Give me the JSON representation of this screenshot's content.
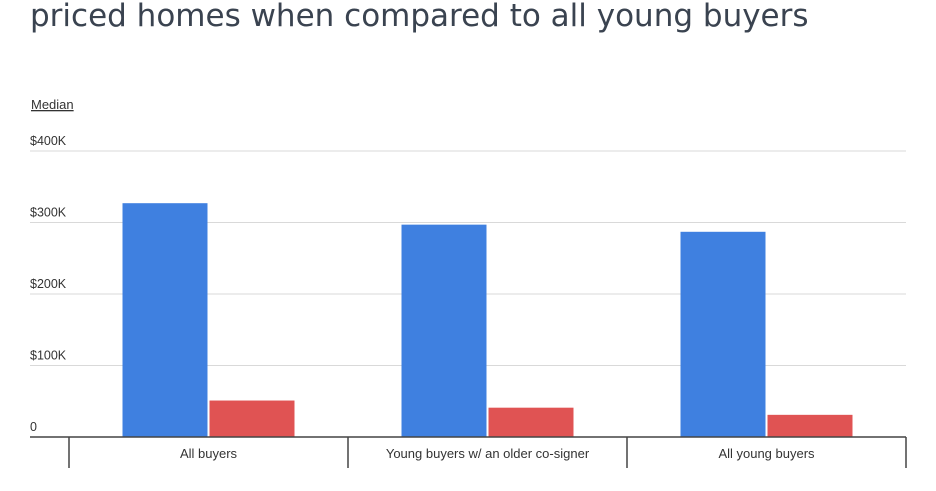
{
  "chart_data": {
    "type": "bar",
    "title": "priced homes when compared to all young buyers",
    "ylabel": "Median",
    "ylim": [
      0,
      400000
    ],
    "ytick_values": [
      0,
      100000,
      200000,
      300000,
      400000
    ],
    "ytick_labels": [
      "0",
      "$100K",
      "$200K",
      "$300K",
      "$400K"
    ],
    "categories": [
      "All buyers",
      "Young buyers w/ an older co-signer",
      "All young buyers"
    ],
    "series": [
      {
        "color": "#3f80e0",
        "values": [
          327000,
          297000,
          287000
        ]
      },
      {
        "color": "#e05353",
        "values": [
          51000,
          41000,
          31000
        ]
      }
    ],
    "grid": true,
    "legend": "none"
  }
}
